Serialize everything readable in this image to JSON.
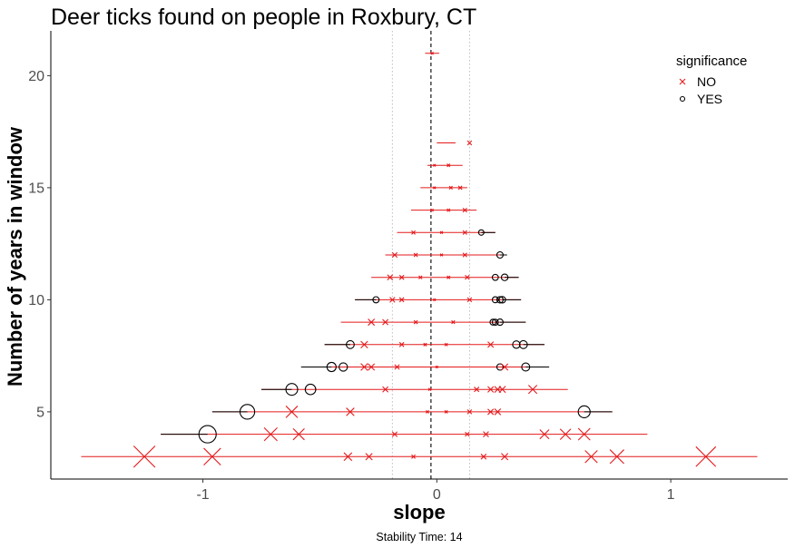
{
  "chart_data": {
    "type": "scatter",
    "title": "Deer ticks found on people in Roxbury, CT",
    "xlabel": "slope",
    "ylabel": "Number of years in window",
    "caption": "Stability Time: 14",
    "xlim": [
      -1.65,
      1.5
    ],
    "ylim": [
      2.0,
      22.0
    ],
    "x_ticks": [
      -1,
      0,
      1
    ],
    "x_tick_labels": [
      "-1",
      "0",
      "1"
    ],
    "y_ticks": [
      5,
      10,
      15,
      20
    ],
    "y_tick_labels": [
      "5",
      "10",
      "15",
      "20"
    ],
    "grid": false,
    "reference_lines": {
      "zero": 0,
      "dashed_center": -0.025,
      "dotted": [
        -0.19,
        0.14
      ]
    },
    "legend": {
      "title": "significance",
      "position": "top-right",
      "entries": [
        {
          "label": "NO",
          "marker": "x",
          "color": "#e41a1c"
        },
        {
          "label": "YES",
          "marker": "circle",
          "color": "#000000"
        }
      ]
    },
    "colors": {
      "NO": "#e41a1c",
      "YES": "#000000"
    },
    "points": [
      {
        "y": 21,
        "slope": -0.02,
        "lo": -0.05,
        "hi": 0.01,
        "sig": "NO"
      },
      {
        "y": 17,
        "slope": 0.14,
        "lo": 0.0,
        "hi": 0.08,
        "sig": "NO"
      },
      {
        "y": 16,
        "slope": -0.01,
        "lo": -0.04,
        "hi": 0.11,
        "sig": "NO"
      },
      {
        "y": 16,
        "slope": 0.05,
        "lo": -0.04,
        "hi": 0.11,
        "sig": "NO"
      },
      {
        "y": 15,
        "slope": -0.01,
        "lo": -0.07,
        "hi": 0.13,
        "sig": "NO"
      },
      {
        "y": 15,
        "slope": 0.06,
        "lo": -0.07,
        "hi": 0.13,
        "sig": "NO"
      },
      {
        "y": 15,
        "slope": 0.1,
        "lo": -0.07,
        "hi": 0.13,
        "sig": "NO"
      },
      {
        "y": 14,
        "slope": -0.02,
        "lo": -0.11,
        "hi": 0.17,
        "sig": "NO"
      },
      {
        "y": 14,
        "slope": 0.05,
        "lo": -0.11,
        "hi": 0.17,
        "sig": "NO"
      },
      {
        "y": 14,
        "slope": 0.12,
        "lo": -0.11,
        "hi": 0.17,
        "sig": "NO"
      },
      {
        "y": 13,
        "slope": -0.1,
        "lo": -0.17,
        "hi": 0.25,
        "sig": "NO"
      },
      {
        "y": 13,
        "slope": 0.02,
        "lo": -0.17,
        "hi": 0.25,
        "sig": "NO"
      },
      {
        "y": 13,
        "slope": 0.12,
        "lo": -0.17,
        "hi": 0.25,
        "sig": "NO"
      },
      {
        "y": 13,
        "slope": 0.19,
        "lo": -0.17,
        "hi": 0.25,
        "sig": "YES"
      },
      {
        "y": 12,
        "slope": -0.18,
        "lo": -0.22,
        "hi": 0.3,
        "sig": "NO"
      },
      {
        "y": 12,
        "slope": -0.09,
        "lo": -0.22,
        "hi": 0.3,
        "sig": "NO"
      },
      {
        "y": 12,
        "slope": 0.02,
        "lo": -0.22,
        "hi": 0.3,
        "sig": "NO"
      },
      {
        "y": 12,
        "slope": 0.12,
        "lo": -0.22,
        "hi": 0.3,
        "sig": "NO"
      },
      {
        "y": 12,
        "slope": 0.27,
        "lo": -0.22,
        "hi": 0.3,
        "sig": "YES"
      },
      {
        "y": 11,
        "slope": -0.2,
        "lo": -0.28,
        "hi": 0.35,
        "sig": "NO"
      },
      {
        "y": 11,
        "slope": -0.15,
        "lo": -0.28,
        "hi": 0.35,
        "sig": "NO"
      },
      {
        "y": 11,
        "slope": -0.07,
        "lo": -0.28,
        "hi": 0.35,
        "sig": "NO"
      },
      {
        "y": 11,
        "slope": 0.05,
        "lo": -0.28,
        "hi": 0.35,
        "sig": "NO"
      },
      {
        "y": 11,
        "slope": 0.13,
        "lo": -0.28,
        "hi": 0.35,
        "sig": "NO"
      },
      {
        "y": 11,
        "slope": 0.25,
        "lo": -0.28,
        "hi": 0.35,
        "sig": "YES"
      },
      {
        "y": 11,
        "slope": 0.29,
        "lo": -0.28,
        "hi": 0.35,
        "sig": "YES"
      },
      {
        "y": 10,
        "slope": -0.26,
        "lo": -0.35,
        "hi": 0.36,
        "sig": "YES"
      },
      {
        "y": 10,
        "slope": -0.19,
        "lo": -0.35,
        "hi": 0.36,
        "sig": "NO"
      },
      {
        "y": 10,
        "slope": -0.15,
        "lo": -0.35,
        "hi": 0.36,
        "sig": "NO"
      },
      {
        "y": 10,
        "slope": -0.01,
        "lo": -0.35,
        "hi": 0.36,
        "sig": "NO"
      },
      {
        "y": 10,
        "slope": 0.14,
        "lo": -0.35,
        "hi": 0.36,
        "sig": "NO"
      },
      {
        "y": 10,
        "slope": 0.25,
        "lo": -0.35,
        "hi": 0.36,
        "sig": "YES"
      },
      {
        "y": 10,
        "slope": 0.27,
        "lo": -0.35,
        "hi": 0.36,
        "sig": "YES"
      },
      {
        "y": 10,
        "slope": 0.28,
        "lo": -0.35,
        "hi": 0.36,
        "sig": "YES"
      },
      {
        "y": 9,
        "slope": -0.28,
        "lo": -0.41,
        "hi": 0.38,
        "sig": "NO"
      },
      {
        "y": 9,
        "slope": -0.22,
        "lo": -0.41,
        "hi": 0.38,
        "sig": "NO"
      },
      {
        "y": 9,
        "slope": -0.09,
        "lo": -0.41,
        "hi": 0.38,
        "sig": "NO"
      },
      {
        "y": 9,
        "slope": 0.07,
        "lo": -0.41,
        "hi": 0.38,
        "sig": "NO"
      },
      {
        "y": 9,
        "slope": 0.24,
        "lo": -0.41,
        "hi": 0.38,
        "sig": "YES"
      },
      {
        "y": 9,
        "slope": 0.25,
        "lo": -0.41,
        "hi": 0.38,
        "sig": "YES"
      },
      {
        "y": 9,
        "slope": 0.27,
        "lo": -0.41,
        "hi": 0.38,
        "sig": "YES"
      },
      {
        "y": 8,
        "slope": -0.37,
        "lo": -0.48,
        "hi": 0.46,
        "sig": "YES"
      },
      {
        "y": 8,
        "slope": -0.31,
        "lo": -0.48,
        "hi": 0.46,
        "sig": "NO"
      },
      {
        "y": 8,
        "slope": -0.15,
        "lo": -0.48,
        "hi": 0.46,
        "sig": "NO"
      },
      {
        "y": 8,
        "slope": -0.05,
        "lo": -0.48,
        "hi": 0.46,
        "sig": "NO"
      },
      {
        "y": 8,
        "slope": 0.04,
        "lo": -0.48,
        "hi": 0.46,
        "sig": "NO"
      },
      {
        "y": 8,
        "slope": 0.23,
        "lo": -0.48,
        "hi": 0.46,
        "sig": "NO"
      },
      {
        "y": 8,
        "slope": 0.34,
        "lo": -0.48,
        "hi": 0.46,
        "sig": "YES"
      },
      {
        "y": 8,
        "slope": 0.37,
        "lo": -0.48,
        "hi": 0.46,
        "sig": "YES"
      },
      {
        "y": 7,
        "slope": -0.45,
        "lo": -0.58,
        "hi": 0.48,
        "sig": "YES"
      },
      {
        "y": 7,
        "slope": -0.4,
        "lo": -0.58,
        "hi": 0.48,
        "sig": "YES"
      },
      {
        "y": 7,
        "slope": -0.31,
        "lo": -0.58,
        "hi": 0.48,
        "sig": "NO"
      },
      {
        "y": 7,
        "slope": -0.28,
        "lo": -0.58,
        "hi": 0.48,
        "sig": "NO"
      },
      {
        "y": 7,
        "slope": -0.17,
        "lo": -0.58,
        "hi": 0.48,
        "sig": "NO"
      },
      {
        "y": 7,
        "slope": 0.0,
        "lo": -0.58,
        "hi": 0.48,
        "sig": "NO"
      },
      {
        "y": 7,
        "slope": 0.27,
        "lo": -0.58,
        "hi": 0.48,
        "sig": "YES"
      },
      {
        "y": 7,
        "slope": 0.29,
        "lo": -0.58,
        "hi": 0.48,
        "sig": "NO"
      },
      {
        "y": 7,
        "slope": 0.38,
        "lo": -0.58,
        "hi": 0.48,
        "sig": "YES"
      },
      {
        "y": 6,
        "slope": -0.62,
        "lo": -0.75,
        "hi": 0.56,
        "sig": "YES"
      },
      {
        "y": 6,
        "slope": -0.54,
        "lo": -0.75,
        "hi": 0.56,
        "sig": "YES"
      },
      {
        "y": 6,
        "slope": -0.22,
        "lo": -0.75,
        "hi": 0.56,
        "sig": "NO"
      },
      {
        "y": 6,
        "slope": -0.03,
        "lo": -0.75,
        "hi": 0.56,
        "sig": "NO"
      },
      {
        "y": 6,
        "slope": 0.17,
        "lo": -0.75,
        "hi": 0.56,
        "sig": "NO"
      },
      {
        "y": 6,
        "slope": 0.23,
        "lo": -0.75,
        "hi": 0.56,
        "sig": "NO"
      },
      {
        "y": 6,
        "slope": 0.26,
        "lo": -0.75,
        "hi": 0.56,
        "sig": "NO"
      },
      {
        "y": 6,
        "slope": 0.28,
        "lo": -0.75,
        "hi": 0.56,
        "sig": "NO"
      },
      {
        "y": 6,
        "slope": 0.41,
        "lo": -0.75,
        "hi": 0.56,
        "sig": "NO"
      },
      {
        "y": 5,
        "slope": -0.81,
        "lo": -0.96,
        "hi": 0.75,
        "sig": "YES"
      },
      {
        "y": 5,
        "slope": -0.62,
        "lo": -0.96,
        "hi": 0.75,
        "sig": "NO"
      },
      {
        "y": 5,
        "slope": -0.37,
        "lo": -0.96,
        "hi": 0.75,
        "sig": "NO"
      },
      {
        "y": 5,
        "slope": -0.04,
        "lo": -0.96,
        "hi": 0.75,
        "sig": "NO"
      },
      {
        "y": 5,
        "slope": 0.04,
        "lo": -0.96,
        "hi": 0.75,
        "sig": "NO"
      },
      {
        "y": 5,
        "slope": 0.14,
        "lo": -0.96,
        "hi": 0.75,
        "sig": "NO"
      },
      {
        "y": 5,
        "slope": 0.23,
        "lo": -0.96,
        "hi": 0.75,
        "sig": "NO"
      },
      {
        "y": 5,
        "slope": 0.26,
        "lo": -0.96,
        "hi": 0.75,
        "sig": "NO"
      },
      {
        "y": 5,
        "slope": 0.63,
        "lo": -0.96,
        "hi": 0.75,
        "sig": "YES"
      },
      {
        "y": 4,
        "slope": -0.98,
        "lo": -1.18,
        "hi": 0.9,
        "sig": "YES"
      },
      {
        "y": 4,
        "slope": -0.71,
        "lo": -1.18,
        "hi": 0.9,
        "sig": "NO"
      },
      {
        "y": 4,
        "slope": -0.59,
        "lo": -1.18,
        "hi": 0.9,
        "sig": "NO"
      },
      {
        "y": 4,
        "slope": -0.18,
        "lo": -1.18,
        "hi": 0.9,
        "sig": "NO"
      },
      {
        "y": 4,
        "slope": 0.13,
        "lo": -1.18,
        "hi": 0.9,
        "sig": "NO"
      },
      {
        "y": 4,
        "slope": 0.21,
        "lo": -1.18,
        "hi": 0.9,
        "sig": "NO"
      },
      {
        "y": 4,
        "slope": 0.46,
        "lo": -1.18,
        "hi": 0.9,
        "sig": "NO"
      },
      {
        "y": 4,
        "slope": 0.55,
        "lo": -1.18,
        "hi": 0.9,
        "sig": "NO"
      },
      {
        "y": 4,
        "slope": 0.63,
        "lo": -1.18,
        "hi": 0.9,
        "sig": "NO"
      },
      {
        "y": 3,
        "slope": -1.25,
        "lo": -1.52,
        "hi": 1.37,
        "sig": "NO"
      },
      {
        "y": 3,
        "slope": -0.96,
        "lo": -1.52,
        "hi": 1.37,
        "sig": "NO"
      },
      {
        "y": 3,
        "slope": -0.38,
        "lo": -1.52,
        "hi": 1.37,
        "sig": "NO"
      },
      {
        "y": 3,
        "slope": -0.29,
        "lo": -1.52,
        "hi": 1.37,
        "sig": "NO"
      },
      {
        "y": 3,
        "slope": -0.1,
        "lo": -1.52,
        "hi": 1.37,
        "sig": "NO"
      },
      {
        "y": 3,
        "slope": 0.2,
        "lo": -1.52,
        "hi": 1.37,
        "sig": "NO"
      },
      {
        "y": 3,
        "slope": 0.29,
        "lo": -1.52,
        "hi": 1.37,
        "sig": "NO"
      },
      {
        "y": 3,
        "slope": 0.66,
        "lo": -1.52,
        "hi": 1.37,
        "sig": "NO"
      },
      {
        "y": 3,
        "slope": 0.77,
        "lo": -1.52,
        "hi": 1.37,
        "sig": "NO"
      },
      {
        "y": 3,
        "slope": 1.15,
        "lo": -1.52,
        "hi": 1.37,
        "sig": "NO"
      }
    ]
  }
}
